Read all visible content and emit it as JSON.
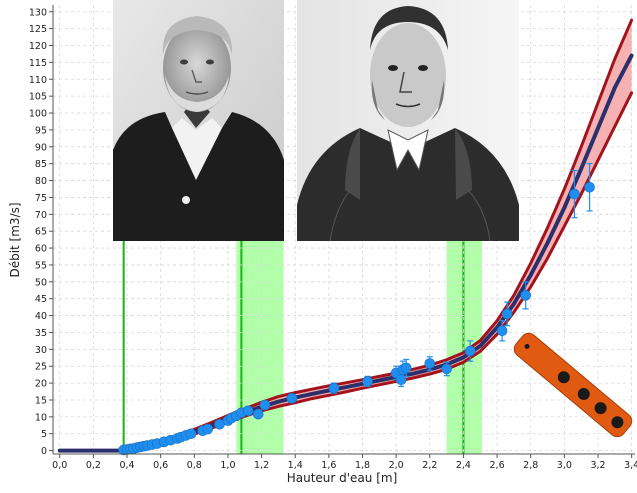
{
  "chart_data": {
    "type": "line",
    "title": "",
    "xlabel": "Hauteur d'eau [m]",
    "ylabel": "Débit [m3/s]",
    "xlim": [
      -0.04,
      3.42
    ],
    "ylim": [
      -1,
      132
    ],
    "x_ticks": [
      "0,0",
      "0,2",
      "0,4",
      "0,6",
      "0,8",
      "1,0",
      "1,2",
      "1,4",
      "1,6",
      "1,8",
      "2,0",
      "2,2",
      "2,4",
      "2,6",
      "2,8",
      "3,0",
      "3,2",
      "3,4"
    ],
    "y_ticks": [
      "0",
      "5",
      "10",
      "15",
      "20",
      "25",
      "30",
      "35",
      "40",
      "45",
      "50",
      "55",
      "60",
      "65",
      "70",
      "75",
      "80",
      "85",
      "90",
      "95",
      "100",
      "105",
      "110",
      "115",
      "120",
      "125",
      "130"
    ],
    "grid": true,
    "colors": {
      "band_fill": "#f4a4a4",
      "band_edge": "#a3131c",
      "median_line": "#2b2f6b",
      "points": "#1f8fef",
      "breakpoint_line": "#19b019",
      "breakpoint_band": "#a4ff9b"
    },
    "breakpoints": [
      {
        "x": 0.38,
        "band": null
      },
      {
        "x": 1.08,
        "band": [
          1.05,
          1.33
        ]
      },
      {
        "x": 2.4,
        "band": [
          2.3,
          2.51
        ]
      }
    ],
    "series": [
      {
        "role": "median",
        "x": [
          0,
          0.38,
          0.4,
          0.5,
          0.6,
          0.7,
          0.8,
          0.9,
          1.0,
          1.1,
          1.2,
          1.3,
          1.4,
          1.5,
          1.6,
          1.7,
          1.8,
          1.9,
          2.0,
          2.1,
          2.2,
          2.3,
          2.4,
          2.5,
          2.6,
          2.7,
          2.8,
          2.9,
          3.0,
          3.1,
          3.2,
          3.3,
          3.4
        ],
        "y": [
          0,
          0,
          0.3,
          1.2,
          2.4,
          3.9,
          5.6,
          7.4,
          9.4,
          11.3,
          13.0,
          14.5,
          15.7,
          16.8,
          17.8,
          18.8,
          19.8,
          20.8,
          21.8,
          22.8,
          24.0,
          25.5,
          27.6,
          31.0,
          36.5,
          43.5,
          52.0,
          61.5,
          72.0,
          83.5,
          95.5,
          107.5,
          117.0
        ]
      },
      {
        "role": "band-upper",
        "x": [
          0.38,
          0.5,
          0.6,
          0.7,
          0.8,
          0.9,
          1.0,
          1.1,
          1.2,
          1.3,
          1.4,
          1.5,
          1.6,
          1.7,
          1.8,
          1.9,
          2.0,
          2.1,
          2.2,
          2.3,
          2.4,
          2.5,
          2.6,
          2.7,
          2.8,
          2.9,
          3.0,
          3.1,
          3.2,
          3.3,
          3.4
        ],
        "y": [
          0.3,
          1.6,
          2.9,
          4.5,
          6.3,
          8.3,
          10.4,
          12.4,
          14.3,
          16.0,
          17.2,
          18.2,
          19.2,
          20.1,
          21.0,
          22.0,
          23.0,
          24.1,
          25.3,
          26.9,
          29.0,
          32.6,
          38.5,
          46.0,
          55.5,
          66.0,
          77.5,
          90.0,
          103.0,
          116.0,
          127.5
        ]
      },
      {
        "role": "band-lower",
        "x": [
          0.38,
          0.5,
          0.6,
          0.7,
          0.8,
          0.9,
          1.0,
          1.1,
          1.2,
          1.3,
          1.4,
          1.5,
          1.6,
          1.7,
          1.8,
          1.9,
          2.0,
          2.1,
          2.2,
          2.3,
          2.4,
          2.5,
          2.6,
          2.7,
          2.8,
          2.9,
          3.0,
          3.1,
          3.2,
          3.3,
          3.4
        ],
        "y": [
          0,
          0.9,
          1.9,
          3.3,
          4.9,
          6.6,
          8.4,
          10.2,
          11.8,
          13.1,
          14.2,
          15.4,
          16.4,
          17.4,
          18.5,
          19.5,
          20.5,
          21.5,
          22.7,
          24.1,
          26.2,
          29.4,
          34.5,
          41.0,
          48.5,
          57.0,
          66.5,
          76.0,
          86.0,
          96.0,
          106.0
        ]
      },
      {
        "role": "observations",
        "x": [
          0.38,
          0.4,
          0.42,
          0.44,
          0.46,
          0.48,
          0.5,
          0.52,
          0.55,
          0.58,
          0.62,
          0.66,
          0.7,
          0.72,
          0.75,
          0.78,
          0.85,
          0.88,
          0.95,
          1.0,
          1.02,
          1.05,
          1.08,
          1.12,
          1.18,
          1.22,
          1.38,
          1.63,
          1.83,
          2.0,
          2.03,
          2.04,
          2.06,
          2.2,
          2.3,
          2.44,
          2.63,
          2.66,
          2.77,
          3.06,
          3.15
        ],
        "y": [
          0.2,
          0.3,
          0.5,
          0.6,
          0.9,
          1.1,
          1.3,
          1.5,
          1.8,
          2.1,
          2.6,
          3.1,
          3.6,
          4.0,
          4.5,
          5.0,
          5.9,
          6.4,
          7.8,
          8.9,
          9.6,
          10.3,
          11.2,
          11.8,
          10.8,
          13.5,
          15.5,
          18.5,
          20.5,
          23.0,
          21.0,
          24.0,
          24.5,
          25.8,
          24.2,
          29.5,
          35.5,
          40.5,
          46.0,
          76.0,
          78.0
        ],
        "err": [
          0,
          0,
          0,
          0,
          0,
          0,
          0,
          0,
          0,
          0,
          0,
          0,
          0,
          0,
          0,
          0,
          0,
          0,
          0,
          0,
          0,
          0,
          0,
          0,
          0,
          0,
          0,
          1.5,
          1.5,
          2,
          2,
          2.5,
          2.5,
          2,
          2,
          3,
          3,
          3.5,
          4,
          7,
          7
        ]
      }
    ]
  },
  "photos": [
    {
      "subject": "portrait-man-suit"
    },
    {
      "subject": "engraving-cleric"
    }
  ]
}
